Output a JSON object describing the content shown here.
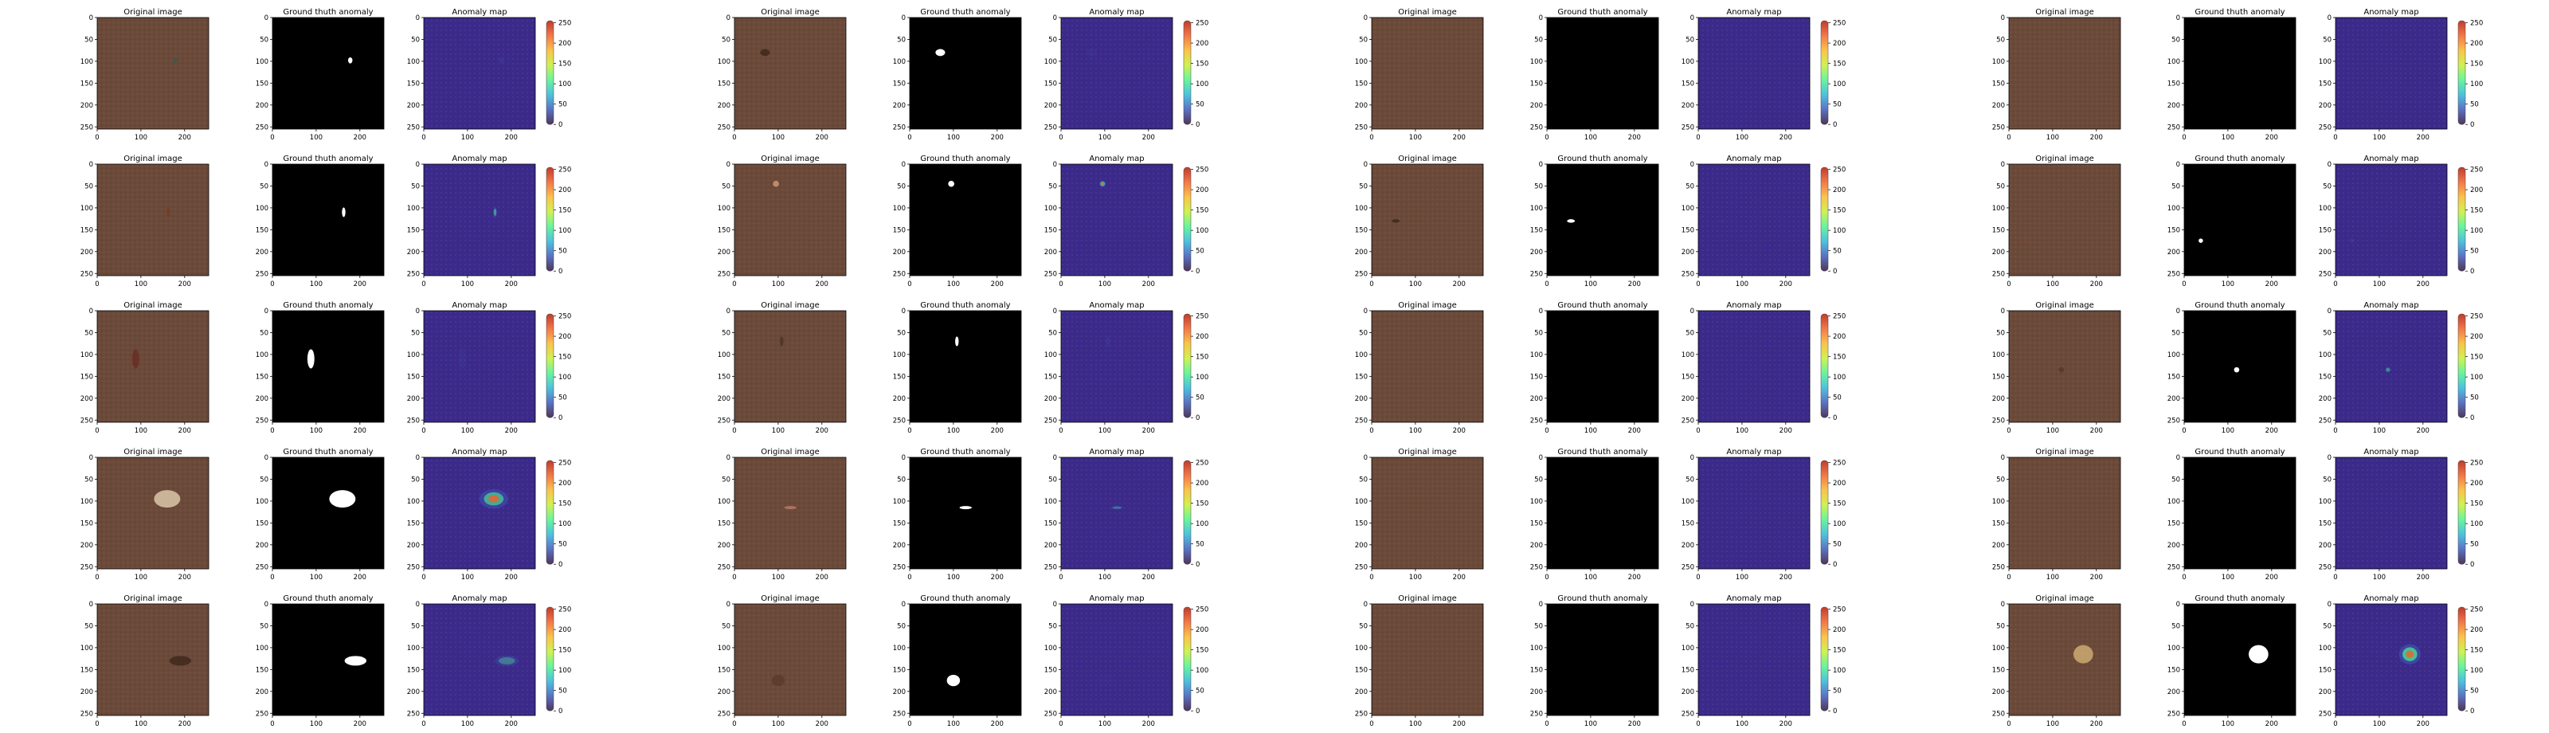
{
  "figure": {
    "panel_titles": [
      "Original image",
      "Ground thuth anomaly",
      "Anomaly map"
    ],
    "x_ticks": [
      0,
      100,
      200
    ],
    "y_ticks": [
      0,
      50,
      100,
      150,
      200,
      250
    ],
    "colorbar_ticks": [
      0,
      50,
      100,
      150,
      200,
      250
    ],
    "image_extent": [
      0,
      255
    ],
    "colorbar_range": [
      0,
      255
    ],
    "colormap": [
      "#30123b",
      "#3e59b8",
      "#2fb6d8",
      "#4ef28c",
      "#c7ef34",
      "#f9b92b",
      "#f0602a",
      "#b41a06"
    ],
    "leather_color": "#6b4a3a",
    "overlay_color": "#3b2a8a"
  },
  "chart_data": {
    "type": "heatmap",
    "description_axes": "each row: groups of [original image, ground truth mask, anomaly map with colorbar]",
    "grid": {
      "rows": 5,
      "groups": 4
    },
    "samples": [
      [
        {
          "defect": [
            [
              178,
              98,
              10,
              14
            ]
          ],
          "intensity": 0.3,
          "tint": "#3a5a4a"
        },
        {
          "defect": [
            [
              70,
              80,
              22,
              16
            ]
          ],
          "intensity": 0.15,
          "tint": "#3a2418"
        },
        {
          "defect": [],
          "intensity": 0,
          "tint": ""
        },
        {
          "defect": [],
          "intensity": 0,
          "tint": ""
        }
      ],
      [
        {
          "defect": [
            [
              163,
              110,
              8,
              22
            ]
          ],
          "intensity": 0.7,
          "tint": "#7a3a20"
        },
        {
          "defect": [
            [
              95,
              45,
              14,
              14
            ]
          ],
          "intensity": 0.9,
          "tint": "#d9a27a"
        },
        {
          "defect": [
            [
              55,
              130,
              18,
              8
            ]
          ],
          "intensity": 0.15,
          "tint": "#3a2418"
        },
        {
          "defect": [
            [
              38,
              175,
              10,
              10
            ]
          ],
          "intensity": 0.35,
          "tint": "#7a4a30"
        }
      ],
      [
        {
          "defect": [
            [
              88,
              110,
              16,
              44
            ]
          ],
          "intensity": 0.2,
          "tint": "#6a2a20"
        },
        {
          "defect": [
            [
              108,
              70,
              8,
              22
            ]
          ],
          "intensity": 0.3,
          "tint": "#4a3020"
        },
        {
          "defect": [],
          "intensity": 0,
          "tint": ""
        },
        {
          "defect": [
            [
              120,
              135,
              12,
              12
            ]
          ],
          "intensity": 0.6,
          "tint": "#5a3424"
        }
      ],
      [
        {
          "defect": [
            [
              160,
              95,
              60,
              40
            ]
          ],
          "intensity": 0.85,
          "tint": "#e8d8b8"
        },
        {
          "defect": [
            [
              128,
              115,
              28,
              6
            ]
          ],
          "intensity": 0.45,
          "tint": "#c08070"
        },
        {
          "defect": [],
          "intensity": 0,
          "tint": ""
        },
        {
          "defect": [],
          "intensity": 0,
          "tint": ""
        }
      ],
      [
        {
          "defect": [
            [
              190,
              130,
              50,
              22
            ]
          ],
          "intensity": 0.5,
          "tint": "#3a2418"
        },
        {
          "defect": [
            [
              100,
              175,
              30,
              26
            ]
          ],
          "intensity": 0.1,
          "tint": "#5a3a2c"
        },
        {
          "defect": [],
          "intensity": 0,
          "tint": ""
        },
        {
          "defect": [
            [
              170,
              115,
              45,
              42
            ]
          ],
          "intensity": 1.0,
          "tint": "#d8b87a"
        }
      ]
    ]
  }
}
